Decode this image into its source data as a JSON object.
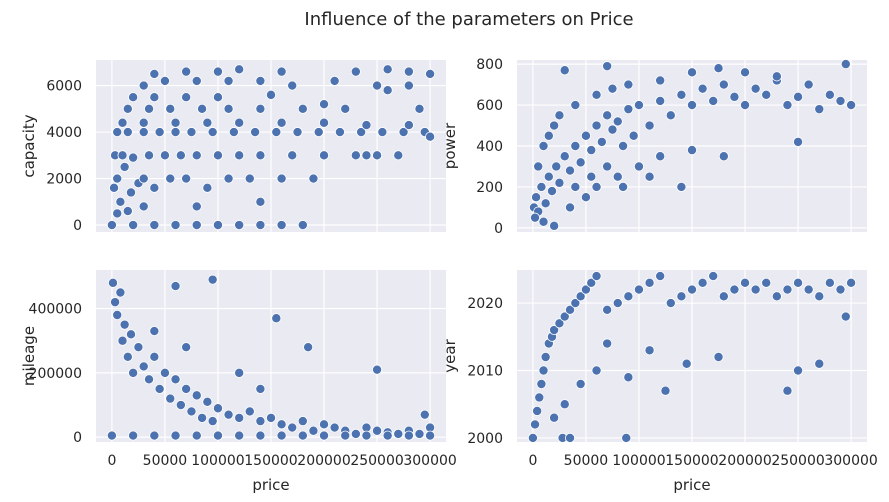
{
  "figure": {
    "suptitle": "Influence of the parameters on Price",
    "background": "#ffffff",
    "panel_background": "#eaeaf2",
    "grid_color": "#ffffff",
    "marker_color": "#4c72b0",
    "marker_edge": "#ffffff"
  },
  "chart_data": [
    {
      "type": "scatter",
      "xlabel": "",
      "ylabel": "capacity",
      "xlim": [
        -15000,
        315000
      ],
      "ylim": [
        -300,
        7100
      ],
      "x_ticks": [],
      "y_ticks": [
        0,
        2000,
        4000,
        6000
      ],
      "grid": true,
      "points": [
        [
          2000,
          1600
        ],
        [
          5000,
          2000
        ],
        [
          8000,
          1000
        ],
        [
          12000,
          2500
        ],
        [
          18000,
          1400
        ],
        [
          25000,
          1800
        ],
        [
          30000,
          2000
        ],
        [
          40000,
          1600
        ],
        [
          55000,
          2000
        ],
        [
          70000,
          2000
        ],
        [
          90000,
          1600
        ],
        [
          110000,
          2000
        ],
        [
          130000,
          2000
        ],
        [
          160000,
          2000
        ],
        [
          3000,
          3000
        ],
        [
          10000,
          3000
        ],
        [
          20000,
          2900
        ],
        [
          35000,
          3000
        ],
        [
          50000,
          3000
        ],
        [
          65000,
          3000
        ],
        [
          80000,
          3000
        ],
        [
          100000,
          3000
        ],
        [
          120000,
          3000
        ],
        [
          140000,
          3000
        ],
        [
          170000,
          3000
        ],
        [
          200000,
          3000
        ],
        [
          240000,
          3000
        ],
        [
          270000,
          3000
        ],
        [
          5000,
          4000
        ],
        [
          15000,
          4000
        ],
        [
          30000,
          4000
        ],
        [
          45000,
          4000
        ],
        [
          60000,
          4000
        ],
        [
          75000,
          4000
        ],
        [
          95000,
          4000
        ],
        [
          115000,
          4000
        ],
        [
          135000,
          4000
        ],
        [
          155000,
          4000
        ],
        [
          175000,
          4000
        ],
        [
          195000,
          4000
        ],
        [
          215000,
          4000
        ],
        [
          235000,
          4000
        ],
        [
          255000,
          4000
        ],
        [
          275000,
          4000
        ],
        [
          295000,
          4000
        ],
        [
          300000,
          3800
        ],
        [
          10000,
          4400
        ],
        [
          30000,
          4400
        ],
        [
          60000,
          4400
        ],
        [
          90000,
          4400
        ],
        [
          120000,
          4400
        ],
        [
          160000,
          4400
        ],
        [
          200000,
          4400
        ],
        [
          240000,
          4300
        ],
        [
          280000,
          4300
        ],
        [
          15000,
          5000
        ],
        [
          35000,
          5000
        ],
        [
          55000,
          5000
        ],
        [
          85000,
          5000
        ],
        [
          110000,
          5000
        ],
        [
          140000,
          5000
        ],
        [
          180000,
          5000
        ],
        [
          220000,
          5000
        ],
        [
          290000,
          5000
        ],
        [
          20000,
          5500
        ],
        [
          40000,
          5500
        ],
        [
          70000,
          5500
        ],
        [
          100000,
          5500
        ],
        [
          150000,
          5600
        ],
        [
          200000,
          5200
        ],
        [
          260000,
          5800
        ],
        [
          30000,
          6000
        ],
        [
          50000,
          6200
        ],
        [
          80000,
          6200
        ],
        [
          110000,
          6200
        ],
        [
          140000,
          6200
        ],
        [
          170000,
          6000
        ],
        [
          210000,
          6200
        ],
        [
          250000,
          6000
        ],
        [
          280000,
          6000
        ],
        [
          40000,
          6500
        ],
        [
          70000,
          6600
        ],
        [
          100000,
          6600
        ],
        [
          120000,
          6700
        ],
        [
          160000,
          6600
        ],
        [
          230000,
          6600
        ],
        [
          260000,
          6700
        ],
        [
          280000,
          6600
        ],
        [
          300000,
          6500
        ],
        [
          0,
          0
        ],
        [
          20000,
          0
        ],
        [
          40000,
          0
        ],
        [
          60000,
          0
        ],
        [
          80000,
          0
        ],
        [
          100000,
          0
        ],
        [
          120000,
          0
        ],
        [
          140000,
          0
        ],
        [
          160000,
          0
        ],
        [
          180000,
          0
        ],
        [
          5000,
          500
        ],
        [
          15000,
          600
        ],
        [
          30000,
          800
        ],
        [
          80000,
          800
        ],
        [
          140000,
          1000
        ],
        [
          190000,
          2000
        ],
        [
          230000,
          3000
        ],
        [
          250000,
          3000
        ]
      ]
    },
    {
      "type": "scatter",
      "xlabel": "",
      "ylabel": "power",
      "xlim": [
        -15000,
        315000
      ],
      "ylim": [
        -20,
        820
      ],
      "x_ticks": [],
      "y_ticks": [
        0,
        200,
        400,
        600,
        800
      ],
      "grid": true,
      "points": [
        [
          1000,
          100
        ],
        [
          3000,
          150
        ],
        [
          5000,
          80
        ],
        [
          8000,
          200
        ],
        [
          12000,
          120
        ],
        [
          15000,
          250
        ],
        [
          18000,
          180
        ],
        [
          22000,
          300
        ],
        [
          25000,
          220
        ],
        [
          30000,
          350
        ],
        [
          35000,
          280
        ],
        [
          40000,
          400
        ],
        [
          45000,
          320
        ],
        [
          50000,
          450
        ],
        [
          55000,
          380
        ],
        [
          60000,
          500
        ],
        [
          65000,
          420
        ],
        [
          70000,
          550
        ],
        [
          75000,
          480
        ],
        [
          80000,
          520
        ],
        [
          85000,
          400
        ],
        [
          90000,
          580
        ],
        [
          95000,
          450
        ],
        [
          100000,
          600
        ],
        [
          110000,
          500
        ],
        [
          120000,
          620
        ],
        [
          130000,
          550
        ],
        [
          140000,
          650
        ],
        [
          150000,
          600
        ],
        [
          160000,
          680
        ],
        [
          170000,
          620
        ],
        [
          180000,
          700
        ],
        [
          190000,
          640
        ],
        [
          200000,
          600
        ],
        [
          210000,
          680
        ],
        [
          220000,
          650
        ],
        [
          230000,
          720
        ],
        [
          240000,
          600
        ],
        [
          250000,
          640
        ],
        [
          260000,
          700
        ],
        [
          270000,
          580
        ],
        [
          280000,
          650
        ],
        [
          290000,
          620
        ],
        [
          300000,
          600
        ],
        [
          2000,
          50
        ],
        [
          10000,
          30
        ],
        [
          20000,
          10
        ],
        [
          35000,
          100
        ],
        [
          50000,
          150
        ],
        [
          60000,
          200
        ],
        [
          80000,
          250
        ],
        [
          100000,
          300
        ],
        [
          120000,
          350
        ],
        [
          150000,
          380
        ],
        [
          180000,
          350
        ],
        [
          250000,
          420
        ],
        [
          30000,
          770
        ],
        [
          70000,
          790
        ],
        [
          150000,
          760
        ],
        [
          175000,
          780
        ],
        [
          200000,
          760
        ],
        [
          230000,
          740
        ],
        [
          295000,
          800
        ],
        [
          5000,
          300
        ],
        [
          10000,
          400
        ],
        [
          15000,
          450
        ],
        [
          20000,
          500
        ],
        [
          25000,
          550
        ],
        [
          40000,
          600
        ],
        [
          60000,
          650
        ],
        [
          75000,
          680
        ],
        [
          90000,
          700
        ],
        [
          120000,
          720
        ],
        [
          40000,
          200
        ],
        [
          55000,
          250
        ],
        [
          70000,
          300
        ],
        [
          85000,
          200
        ],
        [
          110000,
          250
        ],
        [
          140000,
          200
        ]
      ]
    },
    {
      "type": "scatter",
      "xlabel": "price",
      "ylabel": "mileage",
      "xlim": [
        -15000,
        315000
      ],
      "ylim": [
        -15000,
        520000
      ],
      "x_ticks": [
        0,
        50000,
        100000,
        150000,
        200000,
        250000,
        300000
      ],
      "y_ticks": [
        0,
        200000,
        400000
      ],
      "grid": true,
      "points": [
        [
          1000,
          480000
        ],
        [
          3000,
          420000
        ],
        [
          5000,
          380000
        ],
        [
          8000,
          450000
        ],
        [
          10000,
          300000
        ],
        [
          12000,
          350000
        ],
        [
          15000,
          250000
        ],
        [
          18000,
          320000
        ],
        [
          20000,
          200000
        ],
        [
          25000,
          280000
        ],
        [
          30000,
          220000
        ],
        [
          35000,
          180000
        ],
        [
          40000,
          250000
        ],
        [
          45000,
          150000
        ],
        [
          50000,
          200000
        ],
        [
          55000,
          120000
        ],
        [
          60000,
          180000
        ],
        [
          65000,
          100000
        ],
        [
          70000,
          150000
        ],
        [
          75000,
          80000
        ],
        [
          80000,
          130000
        ],
        [
          85000,
          60000
        ],
        [
          90000,
          110000
        ],
        [
          95000,
          50000
        ],
        [
          100000,
          90000
        ],
        [
          110000,
          70000
        ],
        [
          120000,
          60000
        ],
        [
          130000,
          80000
        ],
        [
          140000,
          50000
        ],
        [
          150000,
          60000
        ],
        [
          160000,
          40000
        ],
        [
          170000,
          30000
        ],
        [
          180000,
          50000
        ],
        [
          190000,
          20000
        ],
        [
          200000,
          40000
        ],
        [
          210000,
          30000
        ],
        [
          220000,
          20000
        ],
        [
          230000,
          10000
        ],
        [
          240000,
          30000
        ],
        [
          250000,
          20000
        ],
        [
          260000,
          15000
        ],
        [
          270000,
          10000
        ],
        [
          280000,
          20000
        ],
        [
          290000,
          10000
        ],
        [
          300000,
          30000
        ],
        [
          0,
          5000
        ],
        [
          20000,
          5000
        ],
        [
          40000,
          5000
        ],
        [
          60000,
          5000
        ],
        [
          80000,
          5000
        ],
        [
          100000,
          5000
        ],
        [
          120000,
          5000
        ],
        [
          140000,
          5000
        ],
        [
          160000,
          5000
        ],
        [
          180000,
          5000
        ],
        [
          200000,
          5000
        ],
        [
          220000,
          5000
        ],
        [
          240000,
          5000
        ],
        [
          260000,
          5000
        ],
        [
          280000,
          5000
        ],
        [
          300000,
          5000
        ],
        [
          60000,
          470000
        ],
        [
          95000,
          490000
        ],
        [
          155000,
          370000
        ],
        [
          185000,
          280000
        ],
        [
          250000,
          210000
        ],
        [
          40000,
          330000
        ],
        [
          70000,
          280000
        ],
        [
          120000,
          200000
        ],
        [
          140000,
          150000
        ],
        [
          295000,
          70000
        ]
      ]
    },
    {
      "type": "scatter",
      "xlabel": "price",
      "ylabel": "year",
      "xlim": [
        -15000,
        315000
      ],
      "ylim": [
        1999.4,
        2024.9
      ],
      "x_ticks": [
        0,
        50000,
        100000,
        150000,
        200000,
        250000,
        300000
      ],
      "y_ticks": [
        2000,
        2010,
        2020
      ],
      "grid": true,
      "points": [
        [
          0,
          2000
        ],
        [
          2000,
          2002
        ],
        [
          4000,
          2004
        ],
        [
          6000,
          2006
        ],
        [
          8000,
          2008
        ],
        [
          10000,
          2010
        ],
        [
          12000,
          2012
        ],
        [
          15000,
          2014
        ],
        [
          18000,
          2015
        ],
        [
          20000,
          2016
        ],
        [
          25000,
          2017
        ],
        [
          30000,
          2018
        ],
        [
          35000,
          2019
        ],
        [
          40000,
          2020
        ],
        [
          45000,
          2021
        ],
        [
          50000,
          2022
        ],
        [
          55000,
          2023
        ],
        [
          60000,
          2024
        ],
        [
          70000,
          2019
        ],
        [
          80000,
          2020
        ],
        [
          90000,
          2021
        ],
        [
          100000,
          2022
        ],
        [
          110000,
          2023
        ],
        [
          120000,
          2024
        ],
        [
          130000,
          2020
        ],
        [
          140000,
          2021
        ],
        [
          150000,
          2022
        ],
        [
          160000,
          2023
        ],
        [
          170000,
          2024
        ],
        [
          180000,
          2021
        ],
        [
          190000,
          2022
        ],
        [
          200000,
          2023
        ],
        [
          210000,
          2022
        ],
        [
          220000,
          2023
        ],
        [
          230000,
          2021
        ],
        [
          240000,
          2022
        ],
        [
          250000,
          2023
        ],
        [
          260000,
          2022
        ],
        [
          270000,
          2021
        ],
        [
          280000,
          2023
        ],
        [
          290000,
          2022
        ],
        [
          300000,
          2023
        ],
        [
          28000,
          2000
        ],
        [
          35000,
          2000
        ],
        [
          88000,
          2000
        ],
        [
          20000,
          2003
        ],
        [
          30000,
          2005
        ],
        [
          45000,
          2008
        ],
        [
          60000,
          2010
        ],
        [
          90000,
          2009
        ],
        [
          125000,
          2007
        ],
        [
          145000,
          2011
        ],
        [
          175000,
          2012
        ],
        [
          240000,
          2007
        ],
        [
          250000,
          2010
        ],
        [
          270000,
          2011
        ],
        [
          295000,
          2018
        ],
        [
          110000,
          2013
        ],
        [
          70000,
          2014
        ]
      ]
    }
  ]
}
